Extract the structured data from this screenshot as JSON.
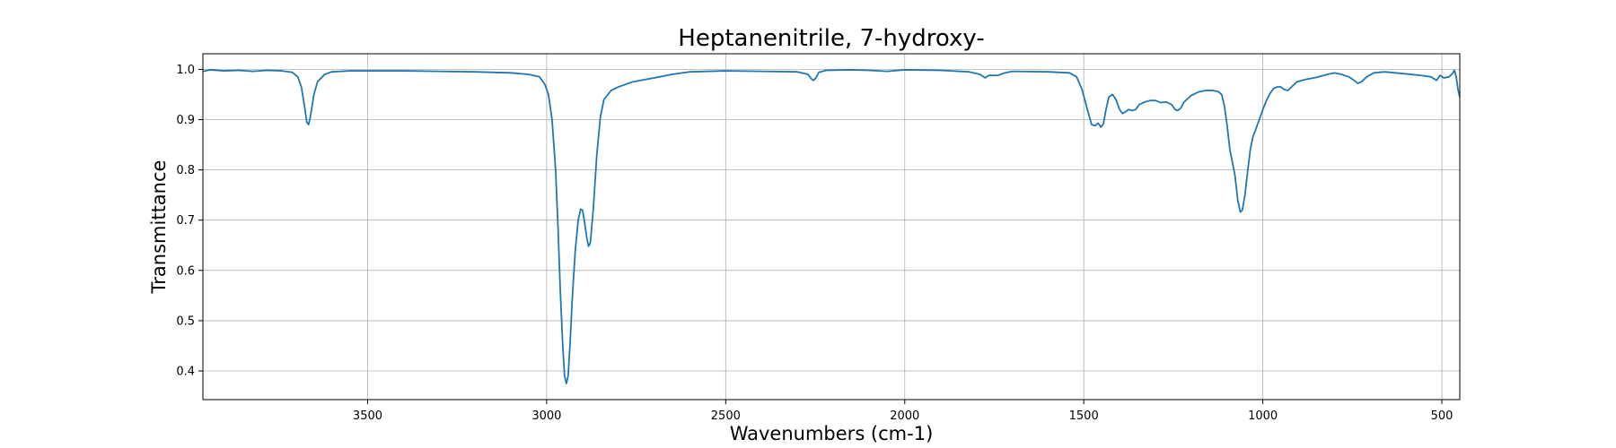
{
  "chart_data": {
    "type": "line",
    "title": "Heptanenitrile, 7-hydroxy-",
    "xlabel": "Wavenumbers (cm-1)",
    "ylabel": "Transmittance",
    "xlim": [
      3960,
      450
    ],
    "ylim": [
      0.343,
      1.031
    ],
    "x_inverted": true,
    "grid": true,
    "x_ticks": [
      3500,
      3000,
      2500,
      2000,
      1500,
      1000,
      500
    ],
    "y_ticks": [
      0.4,
      0.5,
      0.6,
      0.7,
      0.8,
      0.9,
      1.0
    ],
    "series": [
      {
        "color": "#1f77b4",
        "points": [
          [
            3960,
            0.996
          ],
          [
            3940,
            0.999
          ],
          [
            3900,
            0.997
          ],
          [
            3860,
            0.998
          ],
          [
            3820,
            0.996
          ],
          [
            3780,
            0.998
          ],
          [
            3740,
            0.997
          ],
          [
            3710,
            0.994
          ],
          [
            3695,
            0.985
          ],
          [
            3685,
            0.965
          ],
          [
            3677,
            0.93
          ],
          [
            3670,
            0.895
          ],
          [
            3665,
            0.89
          ],
          [
            3660,
            0.905
          ],
          [
            3650,
            0.95
          ],
          [
            3640,
            0.975
          ],
          [
            3620,
            0.99
          ],
          [
            3600,
            0.995
          ],
          [
            3550,
            0.997
          ],
          [
            3500,
            0.997
          ],
          [
            3400,
            0.997
          ],
          [
            3300,
            0.996
          ],
          [
            3200,
            0.995
          ],
          [
            3100,
            0.993
          ],
          [
            3050,
            0.99
          ],
          [
            3020,
            0.985
          ],
          [
            3005,
            0.97
          ],
          [
            2995,
            0.95
          ],
          [
            2985,
            0.9
          ],
          [
            2975,
            0.8
          ],
          [
            2968,
            0.68
          ],
          [
            2962,
            0.56
          ],
          [
            2955,
            0.45
          ],
          [
            2950,
            0.39
          ],
          [
            2945,
            0.375
          ],
          [
            2940,
            0.39
          ],
          [
            2935,
            0.45
          ],
          [
            2928,
            0.55
          ],
          [
            2920,
            0.64
          ],
          [
            2912,
            0.7
          ],
          [
            2905,
            0.722
          ],
          [
            2900,
            0.72
          ],
          [
            2895,
            0.7
          ],
          [
            2888,
            0.665
          ],
          [
            2883,
            0.648
          ],
          [
            2878,
            0.655
          ],
          [
            2870,
            0.72
          ],
          [
            2860,
            0.83
          ],
          [
            2850,
            0.905
          ],
          [
            2840,
            0.94
          ],
          [
            2820,
            0.958
          ],
          [
            2800,
            0.965
          ],
          [
            2760,
            0.975
          ],
          [
            2700,
            0.983
          ],
          [
            2650,
            0.99
          ],
          [
            2600,
            0.995
          ],
          [
            2500,
            0.997
          ],
          [
            2400,
            0.996
          ],
          [
            2300,
            0.995
          ],
          [
            2270,
            0.99
          ],
          [
            2262,
            0.982
          ],
          [
            2255,
            0.978
          ],
          [
            2248,
            0.983
          ],
          [
            2240,
            0.994
          ],
          [
            2220,
            0.998
          ],
          [
            2150,
            0.999
          ],
          [
            2100,
            0.998
          ],
          [
            2050,
            0.996
          ],
          [
            2000,
            0.999
          ],
          [
            1900,
            0.998
          ],
          [
            1820,
            0.995
          ],
          [
            1790,
            0.99
          ],
          [
            1775,
            0.983
          ],
          [
            1765,
            0.988
          ],
          [
            1740,
            0.988
          ],
          [
            1720,
            0.993
          ],
          [
            1700,
            0.996
          ],
          [
            1600,
            0.995
          ],
          [
            1540,
            0.993
          ],
          [
            1520,
            0.985
          ],
          [
            1505,
            0.96
          ],
          [
            1490,
            0.92
          ],
          [
            1478,
            0.89
          ],
          [
            1468,
            0.888
          ],
          [
            1460,
            0.893
          ],
          [
            1452,
            0.885
          ],
          [
            1445,
            0.892
          ],
          [
            1438,
            0.92
          ],
          [
            1430,
            0.945
          ],
          [
            1420,
            0.95
          ],
          [
            1410,
            0.94
          ],
          [
            1400,
            0.92
          ],
          [
            1392,
            0.912
          ],
          [
            1385,
            0.915
          ],
          [
            1375,
            0.92
          ],
          [
            1365,
            0.918
          ],
          [
            1355,
            0.92
          ],
          [
            1345,
            0.93
          ],
          [
            1330,
            0.935
          ],
          [
            1315,
            0.938
          ],
          [
            1300,
            0.938
          ],
          [
            1285,
            0.934
          ],
          [
            1270,
            0.935
          ],
          [
            1255,
            0.93
          ],
          [
            1245,
            0.92
          ],
          [
            1238,
            0.918
          ],
          [
            1230,
            0.922
          ],
          [
            1220,
            0.935
          ],
          [
            1200,
            0.948
          ],
          [
            1180,
            0.955
          ],
          [
            1160,
            0.958
          ],
          [
            1140,
            0.958
          ],
          [
            1125,
            0.956
          ],
          [
            1115,
            0.95
          ],
          [
            1108,
            0.93
          ],
          [
            1100,
            0.89
          ],
          [
            1092,
            0.84
          ],
          [
            1085,
            0.815
          ],
          [
            1078,
            0.79
          ],
          [
            1070,
            0.74
          ],
          [
            1063,
            0.716
          ],
          [
            1057,
            0.72
          ],
          [
            1050,
            0.75
          ],
          [
            1042,
            0.8
          ],
          [
            1035,
            0.84
          ],
          [
            1028,
            0.865
          ],
          [
            1020,
            0.88
          ],
          [
            1010,
            0.9
          ],
          [
            1000,
            0.92
          ],
          [
            990,
            0.938
          ],
          [
            980,
            0.952
          ],
          [
            970,
            0.962
          ],
          [
            960,
            0.965
          ],
          [
            950,
            0.965
          ],
          [
            940,
            0.96
          ],
          [
            930,
            0.958
          ],
          [
            920,
            0.965
          ],
          [
            905,
            0.975
          ],
          [
            880,
            0.98
          ],
          [
            850,
            0.984
          ],
          [
            820,
            0.99
          ],
          [
            800,
            0.993
          ],
          [
            780,
            0.99
          ],
          [
            760,
            0.985
          ],
          [
            745,
            0.978
          ],
          [
            735,
            0.972
          ],
          [
            725,
            0.975
          ],
          [
            710,
            0.985
          ],
          [
            690,
            0.993
          ],
          [
            660,
            0.995
          ],
          [
            630,
            0.993
          ],
          [
            600,
            0.991
          ],
          [
            560,
            0.988
          ],
          [
            530,
            0.985
          ],
          [
            515,
            0.978
          ],
          [
            505,
            0.988
          ],
          [
            495,
            0.983
          ],
          [
            480,
            0.985
          ],
          [
            470,
            0.992
          ],
          [
            465,
            0.998
          ],
          [
            460,
            0.985
          ],
          [
            455,
            0.96
          ],
          [
            450,
            0.945
          ]
        ]
      }
    ]
  }
}
